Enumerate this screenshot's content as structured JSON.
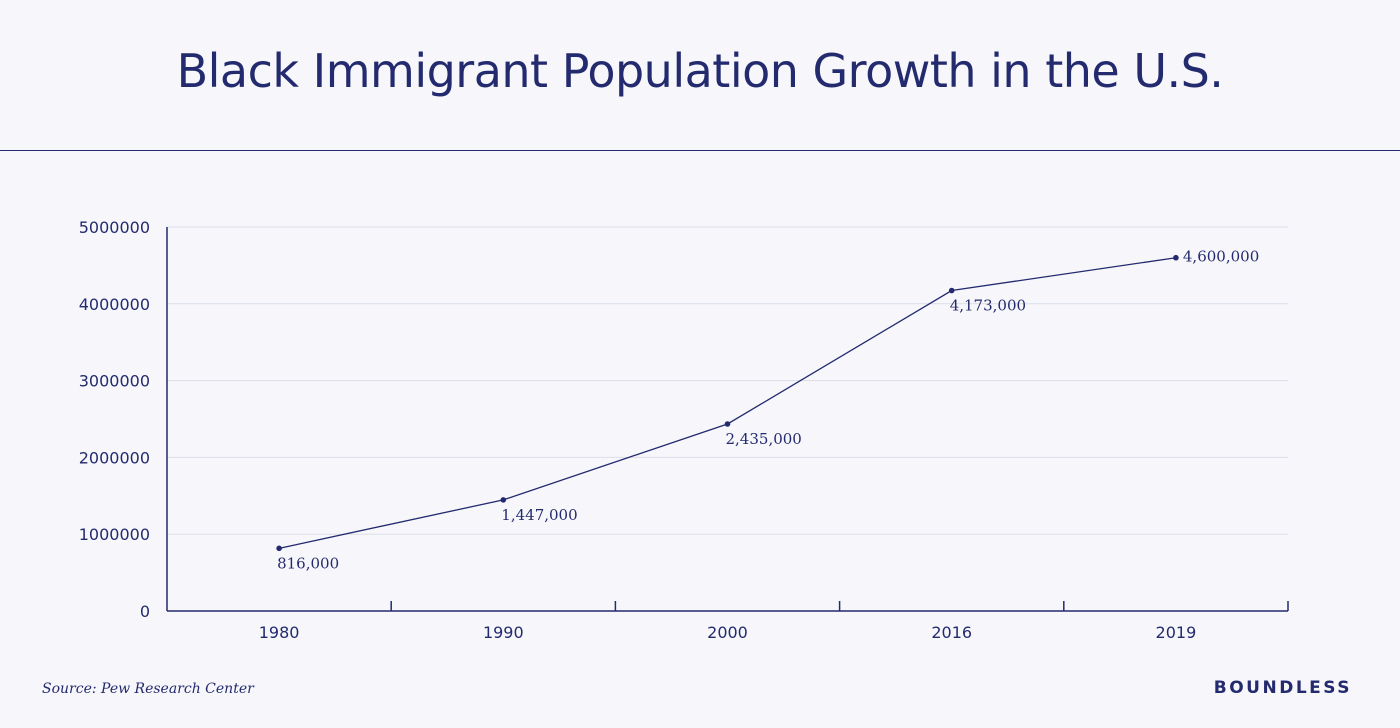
{
  "page": {
    "title": "Black Immigrant Population Growth in the U.S.",
    "source": "Source: Pew Research Center",
    "brand": "BOUNDLESS"
  },
  "colors": {
    "primary": "#232a6e",
    "background": "#f7f7fb",
    "grid": "#dcdde8"
  },
  "chart_data": {
    "type": "line",
    "title": "Black Immigrant Population Growth in the U.S.",
    "xlabel": "",
    "ylabel": "",
    "categories": [
      "1980",
      "1990",
      "2000",
      "2016",
      "2019"
    ],
    "series": [
      {
        "values": [
          816000,
          1447000,
          2435000,
          4173000,
          4600000
        ],
        "labels": [
          "816,000",
          "1,447,000",
          "2,435,000",
          "4,173,000",
          "4,600,000"
        ]
      }
    ],
    "ylim": [
      0,
      5000000
    ],
    "yticks": [
      0,
      1000000,
      2000000,
      3000000,
      4000000,
      5000000
    ],
    "ytick_labels": [
      "0",
      "1000000",
      "2000000",
      "3000000",
      "4000000",
      "5000000"
    ],
    "grid": true,
    "legend": "none"
  }
}
